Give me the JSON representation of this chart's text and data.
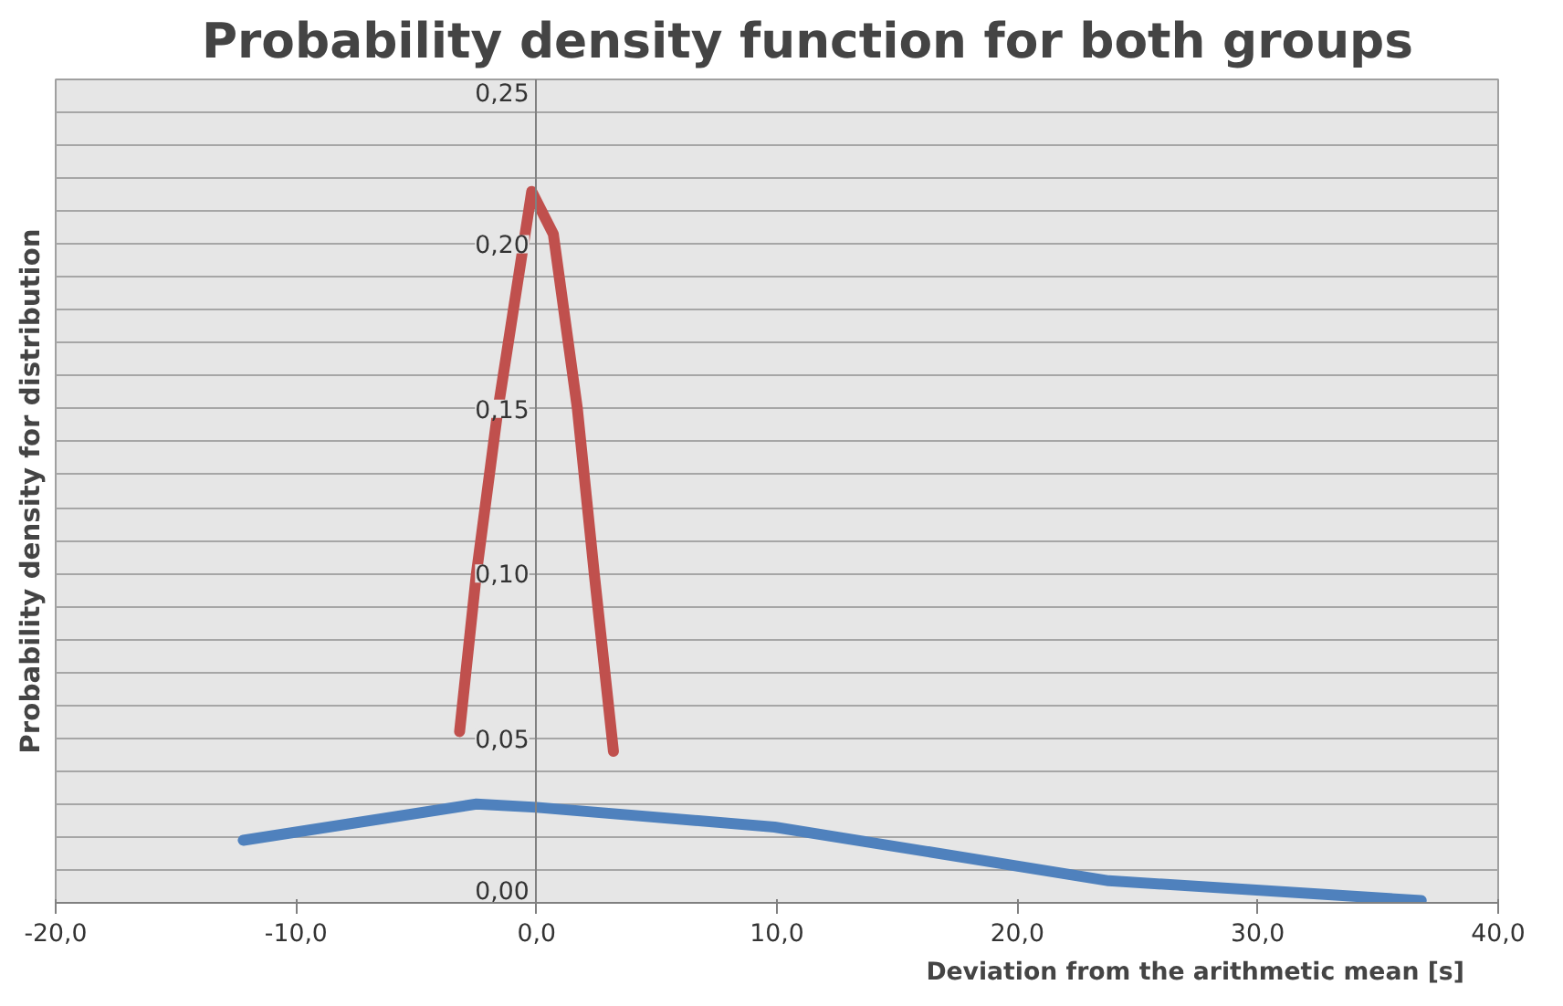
{
  "chart_data": {
    "type": "line",
    "title": "Probability density function for both groups",
    "xlabel": "Deviation  from  the arithmetic  mean  [s]",
    "ylabel": "Probability density for distribution",
    "series": [
      {
        "color": "#4f81bd",
        "x": [
          -12.2,
          -2.5,
          0,
          9.9,
          23.8,
          36.8
        ],
        "values": [
          0.019,
          0.03,
          0.029,
          0.023,
          0.0067,
          0.0007
        ]
      },
      {
        "color": "#c0504d",
        "x": [
          -3.2,
          -2.5,
          -1.6,
          -0.2,
          0.7,
          1.7,
          2.4,
          3.2
        ],
        "values": [
          0.052,
          0.1,
          0.15,
          0.216,
          0.203,
          0.15,
          0.1,
          0.046
        ]
      }
    ],
    "xlim": [
      -20,
      40
    ],
    "ylim": [
      0,
      0.25
    ],
    "xticks": [
      {
        "value": -20,
        "label": "-20,0"
      },
      {
        "value": -10,
        "label": "-10,0"
      },
      {
        "value": 0,
        "label": "0,0"
      },
      {
        "value": 10,
        "label": "10,0"
      },
      {
        "value": 20,
        "label": "20,0"
      },
      {
        "value": 30,
        "label": "30,0"
      },
      {
        "value": 40,
        "label": "40,0"
      }
    ],
    "yticks": [
      {
        "value": 0,
        "label": "0,00"
      },
      {
        "value": 0.01,
        "label": null
      },
      {
        "value": 0.02,
        "label": null
      },
      {
        "value": 0.03,
        "label": null
      },
      {
        "value": 0.04,
        "label": null
      },
      {
        "value": 0.05,
        "label": "0,05"
      },
      {
        "value": 0.06,
        "label": null
      },
      {
        "value": 0.07,
        "label": null
      },
      {
        "value": 0.08,
        "label": null
      },
      {
        "value": 0.09,
        "label": null
      },
      {
        "value": 0.1,
        "label": "0,10"
      },
      {
        "value": 0.11,
        "label": null
      },
      {
        "value": 0.12,
        "label": null
      },
      {
        "value": 0.13,
        "label": null
      },
      {
        "value": 0.14,
        "label": null
      },
      {
        "value": 0.15,
        "label": "0,15"
      },
      {
        "value": 0.16,
        "label": null
      },
      {
        "value": 0.17,
        "label": null
      },
      {
        "value": 0.18,
        "label": null
      },
      {
        "value": 0.19,
        "label": null
      },
      {
        "value": 0.2,
        "label": "0,20"
      },
      {
        "value": 0.21,
        "label": null
      },
      {
        "value": 0.22,
        "label": null
      },
      {
        "value": 0.23,
        "label": null
      },
      {
        "value": 0.24,
        "label": null
      },
      {
        "value": 0.25,
        "label": "0,25"
      }
    ],
    "grid": "y",
    "marker": "none",
    "line_style": "solid",
    "legend": false
  }
}
